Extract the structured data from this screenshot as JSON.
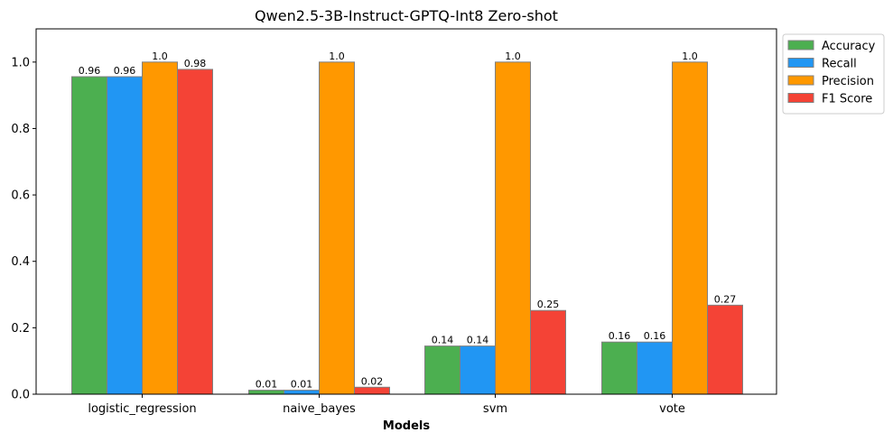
{
  "chart_data": {
    "type": "bar",
    "title": "Qwen2.5-3B-Instruct-GPTQ-Int8 Zero-shot",
    "xlabel": "Models",
    "ylabel": "",
    "ylim": [
      0,
      1.1
    ],
    "yticks": [
      0.0,
      0.2,
      0.4,
      0.6,
      0.8,
      1.0
    ],
    "ytick_labels": [
      "0.0",
      "0.2",
      "0.4",
      "0.6",
      "0.8",
      "1.0"
    ],
    "categories": [
      "logistic_regression",
      "naive_bayes",
      "svm",
      "vote"
    ],
    "legend_position": "outside-top-right",
    "grid": false,
    "series": [
      {
        "name": "Accuracy",
        "color": "#4caf50",
        "values": [
          0.956,
          0.012,
          0.145,
          0.157
        ],
        "labels": [
          "0.96",
          "0.01",
          "0.14",
          "0.16"
        ]
      },
      {
        "name": "Recall",
        "color": "#2196f3",
        "values": [
          0.956,
          0.012,
          0.145,
          0.157
        ],
        "labels": [
          "0.96",
          "0.01",
          "0.14",
          "0.16"
        ]
      },
      {
        "name": "Precision",
        "color": "#ff9800",
        "values": [
          1.0,
          1.0,
          1.0,
          1.0
        ],
        "labels": [
          "1.0",
          "1.0",
          "1.0",
          "1.0"
        ]
      },
      {
        "name": "F1 Score",
        "color": "#f44336",
        "values": [
          0.978,
          0.021,
          0.252,
          0.268
        ],
        "labels": [
          "0.98",
          "0.02",
          "0.25",
          "0.27"
        ]
      }
    ]
  }
}
